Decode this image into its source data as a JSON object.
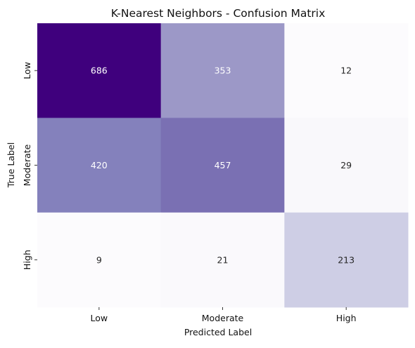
{
  "chart_data": {
    "type": "heatmap",
    "title": "K-Nearest Neighbors - Confusion Matrix",
    "xlabel": "Predicted Label",
    "ylabel": "True Label",
    "x_categories": [
      "Low",
      "Moderate",
      "High"
    ],
    "y_categories": [
      "Low",
      "Moderate",
      "High"
    ],
    "values": [
      [
        686,
        353,
        12
      ],
      [
        420,
        457,
        29
      ],
      [
        9,
        21,
        213
      ]
    ],
    "colormap": "Purples",
    "color_range": [
      9,
      686
    ],
    "colorbar": false,
    "grid": false
  }
}
